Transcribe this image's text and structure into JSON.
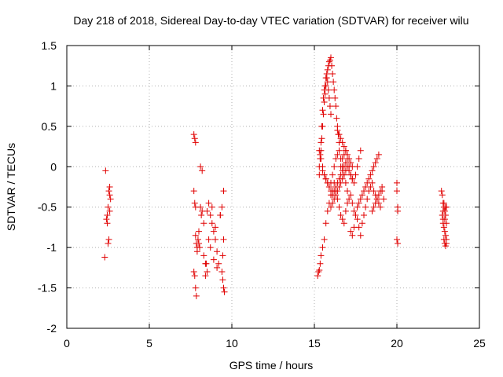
{
  "chart_data": {
    "type": "scatter",
    "title": "Day 218 of 2018, Sidereal Day-to-day VTEC variation (SDTVAR) for receiver wilu",
    "xlabel": "GPS time / hours",
    "ylabel": "SDTVAR / TECUs",
    "xlim": [
      0,
      25
    ],
    "ylim": [
      -2,
      1.5
    ],
    "xticks": [
      0,
      5,
      10,
      15,
      20,
      25
    ],
    "xtick_labels": [
      "0",
      "5",
      "10",
      "15",
      "20",
      "25"
    ],
    "yticks": [
      -2,
      -1.5,
      -1,
      -0.5,
      0,
      0.5,
      1,
      1.5
    ],
    "ytick_labels": [
      "-2",
      "-1.5",
      "-1",
      "-0.5",
      "0",
      "0.5",
      "1",
      "1.5"
    ],
    "grid": true,
    "marker": "+",
    "marker_color": "#e00000",
    "series": [
      {
        "name": "SDTVAR",
        "x": [
          2.3,
          2.35,
          2.4,
          2.45,
          2.5,
          2.55,
          2.6,
          2.6,
          2.65,
          2.55,
          2.5,
          2.45,
          2.6,
          7.7,
          7.75,
          7.8,
          7.7,
          7.75,
          7.8,
          7.7,
          7.75,
          7.8,
          7.85,
          7.9,
          7.95,
          8.0,
          8.1,
          8.2,
          8.3,
          8.4,
          8.5,
          8.6,
          8.7,
          8.8,
          8.9,
          9.0,
          9.1,
          9.2,
          9.3,
          9.4,
          9.5,
          9.45,
          9.5,
          9.55,
          9.4,
          9.45,
          9.5,
          8.1,
          8.15,
          8.2,
          8.0,
          8.05,
          7.9,
          8.3,
          8.5,
          8.7,
          8.9,
          9.1,
          8.6,
          8.8,
          9.0,
          7.8,
          7.85,
          8.4,
          8.45,
          9.3,
          15.2,
          15.25,
          15.3,
          15.35,
          15.4,
          15.5,
          15.6,
          15.7,
          15.8,
          15.9,
          16.0,
          16.1,
          16.2,
          16.3,
          16.4,
          16.5,
          16.6,
          16.7,
          16.8,
          16.9,
          17.0,
          17.1,
          17.2,
          17.3,
          17.4,
          17.5,
          17.6,
          17.7,
          17.8,
          17.9,
          18.0,
          18.1,
          18.2,
          18.3,
          18.4,
          18.5,
          18.6,
          18.7,
          18.8,
          18.9,
          19.0,
          19.1,
          19.2,
          15.3,
          15.35,
          15.4,
          15.45,
          15.5,
          15.55,
          15.6,
          15.65,
          15.7,
          15.75,
          15.8,
          15.85,
          15.9,
          15.95,
          16.0,
          16.05,
          16.1,
          16.15,
          16.2,
          16.25,
          16.3,
          16.35,
          16.4,
          16.45,
          16.5,
          15.3,
          15.35,
          15.4,
          15.45,
          15.5,
          15.55,
          15.6,
          15.65,
          15.7,
          15.75,
          15.8,
          15.85,
          15.9,
          15.95,
          16.0,
          15.3,
          15.4,
          15.5,
          15.6,
          15.7,
          15.8,
          15.9,
          16.0,
          16.1,
          16.2,
          16.3,
          16.4,
          16.5,
          16.6,
          16.7,
          16.8,
          16.9,
          17.0,
          15.5,
          15.6,
          15.7,
          15.8,
          15.9,
          16.0,
          16.1,
          16.2,
          16.3,
          16.4,
          16.5,
          16.6,
          16.7,
          16.8,
          16.9,
          17.0,
          17.1,
          17.2,
          17.3,
          16.6,
          16.7,
          16.8,
          16.9,
          17.0,
          17.1,
          17.2,
          17.3,
          17.4,
          17.5,
          17.6,
          17.7,
          17.8,
          16.4,
          16.5,
          16.6,
          16.7,
          16.8,
          16.9,
          17.0,
          17.1,
          17.2,
          17.3,
          17.2,
          17.3,
          17.4,
          17.5,
          17.6,
          17.7,
          17.8,
          17.9,
          18.0,
          18.1,
          18.2,
          18.3,
          18.4,
          18.5,
          18.6,
          18.7,
          18.8,
          18.9,
          18.5,
          18.6,
          18.7,
          18.8,
          18.9,
          19.0,
          19.1,
          16.0,
          16.1,
          16.2,
          16.3,
          16.4,
          16.5,
          16.6,
          16.7,
          16.8,
          16.9,
          20.0,
          20.0,
          20.05,
          20.05,
          20.0,
          20.05,
          22.7,
          22.75,
          22.8,
          22.85,
          22.9,
          22.95,
          23.0,
          22.8,
          22.85,
          22.9,
          22.95,
          23.0,
          22.75,
          22.8,
          22.85,
          22.9,
          22.95,
          23.0,
          22.8,
          22.9,
          23.0,
          22.85,
          22.95
        ],
        "y": [
          -1.12,
          -0.05,
          -0.65,
          -0.6,
          -0.5,
          -0.3,
          -0.25,
          -0.35,
          -0.4,
          -0.9,
          -0.95,
          -0.7,
          -0.55,
          0.4,
          0.35,
          0.3,
          -0.3,
          -0.45,
          -0.5,
          -1.3,
          -1.35,
          -1.5,
          -1.6,
          -1.0,
          -0.9,
          -0.8,
          0.0,
          -0.05,
          -1.1,
          -1.2,
          -1.3,
          -0.9,
          -0.6,
          -0.7,
          -0.8,
          -0.9,
          -1.05,
          -1.2,
          -0.6,
          -0.5,
          -0.3,
          -1.4,
          -1.5,
          -1.55,
          -1.3,
          -1.1,
          -0.9,
          -0.5,
          -0.6,
          -0.55,
          -0.95,
          -1.0,
          -1.05,
          -0.7,
          -0.55,
          -1.0,
          -1.15,
          -1.25,
          -0.45,
          -0.5,
          -0.75,
          -0.85,
          -0.95,
          -1.35,
          -1.2,
          -0.6,
          -1.35,
          -1.3,
          -1.28,
          -1.2,
          -1.1,
          -1.0,
          -0.9,
          -0.7,
          -0.55,
          -0.45,
          -0.35,
          -0.3,
          -0.2,
          -0.3,
          -0.4,
          -0.5,
          -0.6,
          -0.65,
          -0.7,
          -0.55,
          -0.45,
          -0.4,
          -0.35,
          -0.45,
          -0.55,
          -0.6,
          -0.65,
          -0.75,
          -0.85,
          -0.7,
          -0.6,
          -0.5,
          -0.4,
          -0.3,
          -0.25,
          -0.2,
          -0.3,
          -0.35,
          -0.4,
          -0.45,
          -0.5,
          -0.3,
          -0.4,
          0.0,
          0.15,
          0.3,
          0.5,
          0.7,
          0.85,
          0.95,
          1.0,
          1.1,
          1.15,
          1.2,
          1.25,
          1.3,
          1.32,
          1.35,
          1.25,
          1.15,
          1.05,
          0.95,
          0.85,
          0.75,
          0.6,
          0.5,
          0.4,
          0.3,
          -0.1,
          0.1,
          0.2,
          0.35,
          0.5,
          0.65,
          0.8,
          0.9,
          1.0,
          1.1,
          1.05,
          0.95,
          0.85,
          0.75,
          0.65,
          0.2,
          0.1,
          0.0,
          -0.1,
          -0.15,
          -0.2,
          -0.25,
          -0.2,
          -0.1,
          0.0,
          0.1,
          0.15,
          0.2,
          0.1,
          0.0,
          -0.1,
          -0.2,
          -0.3,
          -0.05,
          -0.1,
          -0.15,
          -0.2,
          -0.25,
          -0.3,
          -0.35,
          -0.3,
          -0.25,
          -0.2,
          -0.15,
          -0.1,
          -0.05,
          0.0,
          0.05,
          0.0,
          -0.05,
          -0.1,
          -0.15,
          0.0,
          0.1,
          0.15,
          0.2,
          0.1,
          0.0,
          -0.1,
          -0.15,
          -0.2,
          -0.1,
          0.0,
          0.1,
          0.2,
          0.45,
          0.4,
          0.35,
          0.3,
          0.25,
          0.2,
          0.15,
          0.1,
          0.05,
          0.0,
          -0.8,
          -0.85,
          -0.75,
          -0.6,
          -0.5,
          -0.45,
          -0.4,
          -0.35,
          -0.3,
          -0.25,
          -0.2,
          -0.15,
          -0.1,
          -0.05,
          0.0,
          0.05,
          0.1,
          0.15,
          -0.55,
          -0.5,
          -0.45,
          -0.4,
          -0.35,
          -0.3,
          -0.25,
          -0.5,
          -0.45,
          -0.4,
          -0.35,
          -0.3,
          -0.25,
          -0.2,
          -0.15,
          -0.1,
          -0.05,
          -0.2,
          -0.3,
          -0.5,
          -0.55,
          -0.9,
          -0.95,
          -0.3,
          -0.35,
          -0.45,
          -0.5,
          -0.55,
          -0.6,
          -0.5,
          -0.7,
          -0.75,
          -0.8,
          -0.85,
          -0.9,
          -0.6,
          -0.65,
          -0.9,
          -0.95,
          -0.98,
          -0.95,
          -0.55,
          -0.65,
          -0.7,
          -0.45,
          -0.5
        ]
      }
    ]
  }
}
